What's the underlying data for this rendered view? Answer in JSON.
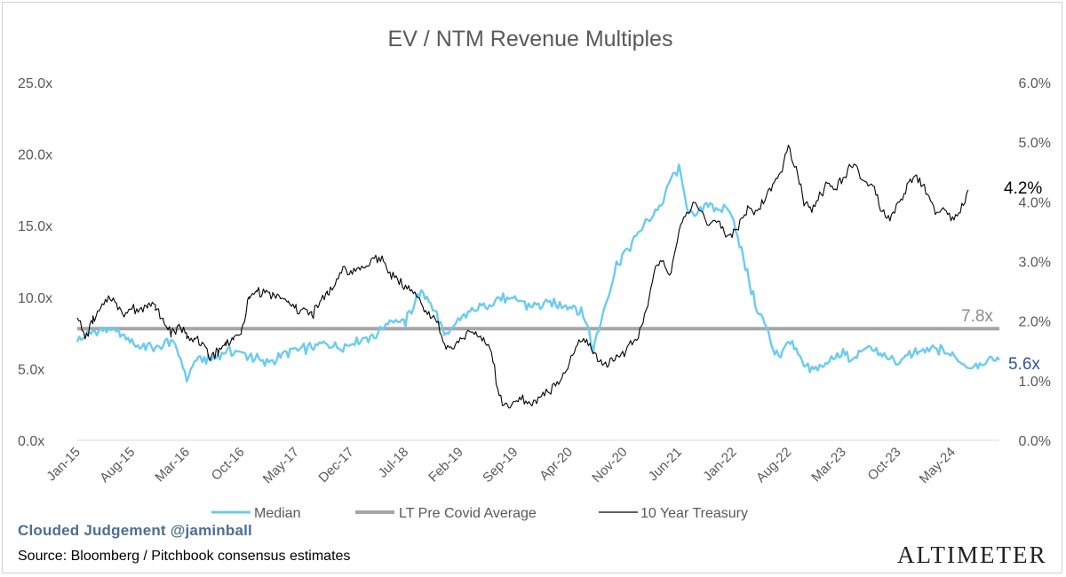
{
  "chart_data": {
    "type": "line",
    "title": "EV / NTM Revenue Multiples",
    "left_axis": {
      "ticks": [
        "0.0x",
        "5.0x",
        "10.0x",
        "15.0x",
        "20.0x",
        "25.0x"
      ],
      "range": [
        0,
        25
      ]
    },
    "right_axis": {
      "ticks": [
        "0.0%",
        "1.0%",
        "2.0%",
        "3.0%",
        "4.0%",
        "5.0%",
        "6.0%"
      ],
      "range": [
        0,
        6
      ]
    },
    "x_ticks": [
      "Jan-15",
      "Aug-15",
      "Mar-16",
      "Oct-16",
      "May-17",
      "Dec-17",
      "Jul-18",
      "Feb-19",
      "Sep-19",
      "Apr-20",
      "Nov-20",
      "Jun-21",
      "Jan-22",
      "Aug-22",
      "Mar-23",
      "Oct-23",
      "May-24"
    ],
    "x_range_months": [
      0,
      118
    ],
    "series": [
      {
        "name": "Median",
        "axis": "left",
        "color": "#6ccbf0",
        "points": [
          [
            0,
            6.9
          ],
          [
            2,
            7.5
          ],
          [
            4,
            7.8
          ],
          [
            6,
            7.2
          ],
          [
            8,
            6.6
          ],
          [
            10,
            6.5
          ],
          [
            12,
            7.0
          ],
          [
            13,
            6.0
          ],
          [
            14,
            4.3
          ],
          [
            15,
            5.6
          ],
          [
            17,
            5.6
          ],
          [
            19,
            6.2
          ],
          [
            21,
            6.1
          ],
          [
            23,
            5.7
          ],
          [
            24,
            5.4
          ],
          [
            26,
            5.9
          ],
          [
            28,
            6.3
          ],
          [
            30,
            6.5
          ],
          [
            32,
            6.7
          ],
          [
            34,
            6.6
          ],
          [
            36,
            7.1
          ],
          [
            38,
            7.3
          ],
          [
            40,
            8.4
          ],
          [
            42,
            8.3
          ],
          [
            43,
            9.5
          ],
          [
            44,
            10.4
          ],
          [
            45,
            9.8
          ],
          [
            46,
            8.8
          ],
          [
            47,
            7.3
          ],
          [
            48,
            7.8
          ],
          [
            49,
            8.4
          ],
          [
            50,
            8.9
          ],
          [
            52,
            9.4
          ],
          [
            54,
            9.9
          ],
          [
            56,
            9.8
          ],
          [
            58,
            9.3
          ],
          [
            60,
            9.5
          ],
          [
            62,
            9.5
          ],
          [
            64,
            9.2
          ],
          [
            65,
            8.5
          ],
          [
            66,
            6.4
          ],
          [
            67,
            8.3
          ],
          [
            69,
            12.3
          ],
          [
            71,
            13.8
          ],
          [
            73,
            15.3
          ],
          [
            75,
            16.7
          ],
          [
            76,
            18.3
          ],
          [
            77,
            19.0
          ],
          [
            78,
            16.5
          ],
          [
            79,
            15.5
          ],
          [
            80,
            16.3
          ],
          [
            81,
            16.7
          ],
          [
            82,
            15.8
          ],
          [
            83,
            16.4
          ],
          [
            84,
            15.5
          ],
          [
            85,
            13.3
          ],
          [
            86,
            11.0
          ],
          [
            87,
            9.1
          ],
          [
            88,
            8.1
          ],
          [
            89,
            6.4
          ],
          [
            90,
            6.0
          ],
          [
            91,
            7.0
          ],
          [
            92,
            6.2
          ],
          [
            93,
            5.2
          ],
          [
            94,
            4.9
          ],
          [
            95,
            5.3
          ],
          [
            96,
            5.4
          ],
          [
            97,
            5.9
          ],
          [
            98,
            6.2
          ],
          [
            99,
            5.6
          ],
          [
            100,
            6.0
          ],
          [
            101,
            6.6
          ],
          [
            102,
            6.3
          ],
          [
            103,
            6.0
          ],
          [
            104,
            5.6
          ],
          [
            105,
            5.4
          ],
          [
            106,
            5.9
          ],
          [
            107,
            6.0
          ],
          [
            108,
            6.2
          ],
          [
            109,
            6.3
          ],
          [
            110,
            6.4
          ],
          [
            111,
            6.2
          ],
          [
            112,
            6.0
          ],
          [
            113,
            5.5
          ],
          [
            114,
            5.2
          ],
          [
            115,
            5.3
          ],
          [
            116,
            5.5
          ],
          [
            117,
            5.7
          ],
          [
            118,
            5.6
          ]
        ]
      },
      {
        "name": "LT Pre Covid Average",
        "axis": "left",
        "color": "#a6a6a6",
        "points": [
          [
            0,
            7.8
          ],
          [
            118,
            7.8
          ]
        ]
      },
      {
        "name": "10 Year Treasury",
        "axis": "right",
        "color": "#000000",
        "points": [
          [
            0,
            2.1
          ],
          [
            1,
            1.7
          ],
          [
            2,
            2.0
          ],
          [
            3,
            2.2
          ],
          [
            4,
            2.4
          ],
          [
            5,
            2.3
          ],
          [
            6,
            2.1
          ],
          [
            7,
            2.2
          ],
          [
            8,
            2.2
          ],
          [
            9,
            2.3
          ],
          [
            10,
            2.2
          ],
          [
            11,
            2.0
          ],
          [
            12,
            1.8
          ],
          [
            13,
            1.9
          ],
          [
            14,
            1.8
          ],
          [
            15,
            1.7
          ],
          [
            16,
            1.6
          ],
          [
            17,
            1.4
          ],
          [
            18,
            1.5
          ],
          [
            19,
            1.6
          ],
          [
            20,
            1.7
          ],
          [
            21,
            1.8
          ],
          [
            22,
            2.4
          ],
          [
            23,
            2.5
          ],
          [
            24,
            2.5
          ],
          [
            25,
            2.4
          ],
          [
            26,
            2.4
          ],
          [
            27,
            2.3
          ],
          [
            28,
            2.2
          ],
          [
            29,
            2.2
          ],
          [
            30,
            2.1
          ],
          [
            31,
            2.3
          ],
          [
            32,
            2.5
          ],
          [
            33,
            2.6
          ],
          [
            34,
            2.9
          ],
          [
            35,
            2.8
          ],
          [
            36,
            2.9
          ],
          [
            37,
            2.9
          ],
          [
            38,
            3.1
          ],
          [
            39,
            3.0
          ],
          [
            40,
            2.8
          ],
          [
            41,
            2.7
          ],
          [
            42,
            2.6
          ],
          [
            43,
            2.5
          ],
          [
            44,
            2.3
          ],
          [
            45,
            2.1
          ],
          [
            46,
            2.0
          ],
          [
            47,
            1.6
          ],
          [
            48,
            1.5
          ],
          [
            49,
            1.7
          ],
          [
            50,
            1.8
          ],
          [
            51,
            1.8
          ],
          [
            52,
            1.7
          ],
          [
            53,
            1.5
          ],
          [
            54,
            0.7
          ],
          [
            55,
            0.6
          ],
          [
            56,
            0.6
          ],
          [
            57,
            0.7
          ],
          [
            58,
            0.6
          ],
          [
            59,
            0.7
          ],
          [
            60,
            0.8
          ],
          [
            61,
            0.9
          ],
          [
            62,
            1.0
          ],
          [
            63,
            1.3
          ],
          [
            64,
            1.6
          ],
          [
            65,
            1.7
          ],
          [
            66,
            1.5
          ],
          [
            67,
            1.3
          ],
          [
            68,
            1.3
          ],
          [
            69,
            1.4
          ],
          [
            70,
            1.5
          ],
          [
            71,
            1.6
          ],
          [
            72,
            1.8
          ],
          [
            73,
            2.3
          ],
          [
            74,
            2.9
          ],
          [
            75,
            3.0
          ],
          [
            76,
            2.8
          ],
          [
            77,
            3.5
          ],
          [
            78,
            3.8
          ],
          [
            79,
            4.0
          ],
          [
            80,
            3.8
          ],
          [
            81,
            3.6
          ],
          [
            82,
            3.7
          ],
          [
            83,
            3.4
          ],
          [
            84,
            3.5
          ],
          [
            85,
            3.7
          ],
          [
            86,
            3.9
          ],
          [
            87,
            3.8
          ],
          [
            88,
            4.1
          ],
          [
            89,
            4.3
          ],
          [
            90,
            4.5
          ],
          [
            91,
            4.9
          ],
          [
            92,
            4.6
          ],
          [
            93,
            4.0
          ],
          [
            94,
            3.9
          ],
          [
            95,
            4.1
          ],
          [
            96,
            4.3
          ],
          [
            97,
            4.2
          ],
          [
            98,
            4.4
          ],
          [
            99,
            4.6
          ],
          [
            100,
            4.5
          ],
          [
            101,
            4.3
          ],
          [
            102,
            4.2
          ],
          [
            103,
            3.8
          ],
          [
            104,
            3.7
          ],
          [
            105,
            3.9
          ],
          [
            106,
            4.2
          ],
          [
            107,
            4.4
          ],
          [
            108,
            4.3
          ],
          [
            109,
            4.1
          ],
          [
            110,
            3.8
          ],
          [
            111,
            3.9
          ],
          [
            112,
            3.7
          ],
          [
            113,
            3.8
          ],
          [
            114,
            4.2
          ]
        ]
      }
    ],
    "end_labels": {
      "treasury": "4.2%",
      "average": "7.8x",
      "median": "5.6x"
    },
    "legend": [
      "Median",
      "LT Pre Covid Average",
      "10 Year Treasury"
    ]
  },
  "credit": "Clouded Judgement @jaminball",
  "source": "Source: Bloomberg / Pitchbook consensus estimates",
  "brand": "ALTIMETER"
}
